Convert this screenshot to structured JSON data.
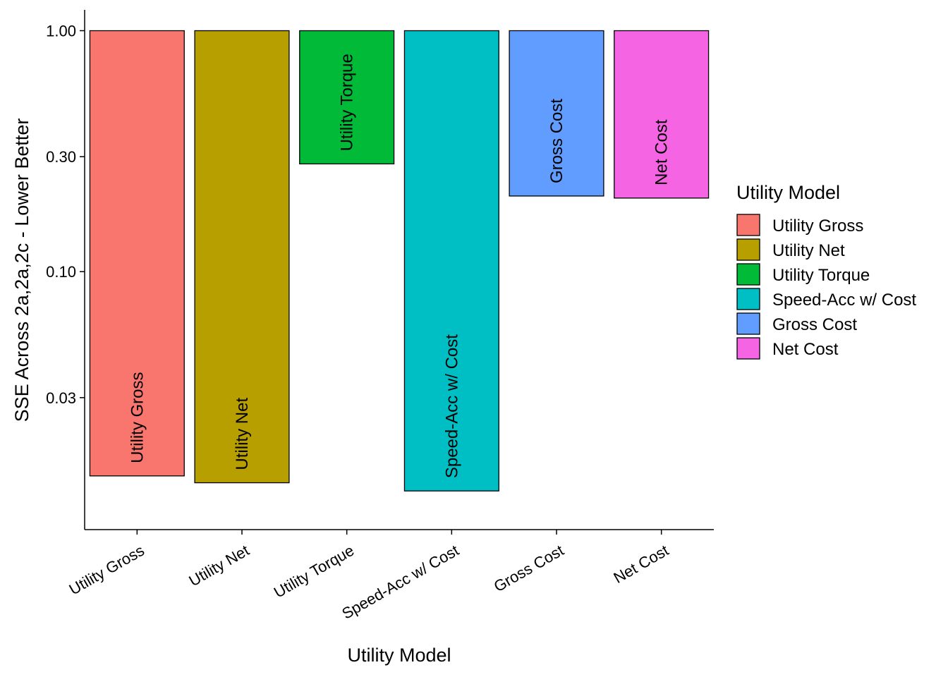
{
  "chart_data": {
    "type": "bar",
    "ylabel": "SSE Across 2a,2a,2c - Lower Better",
    "xlabel": "Utility Model",
    "y_scale": "log10",
    "ylim": [
      0.0085,
      1.22
    ],
    "yticks": [
      1.0,
      0.3,
      0.1,
      0.03
    ],
    "ytick_labels": [
      "1.00",
      "0.30",
      "0.10",
      "0.03"
    ],
    "bar_top": 1.0,
    "categories": [
      "Utility Gross",
      "Utility Net",
      "Utility Torque",
      "Speed-Acc w/ Cost",
      "Gross Cost",
      "Net Cost"
    ],
    "values": [
      0.0142,
      0.0133,
      0.28,
      0.0123,
      0.206,
      0.202
    ],
    "colors": [
      "#F8766D",
      "#B79F00",
      "#00BA38",
      "#00BFC4",
      "#619CFF",
      "#F564E3"
    ],
    "grid": false,
    "legend": {
      "title": "Utility Model",
      "position": "right",
      "entries": [
        "Utility Gross",
        "Utility Net",
        "Utility Torque",
        "Speed-Acc w/ Cost",
        "Gross Cost",
        "Net Cost"
      ]
    }
  }
}
